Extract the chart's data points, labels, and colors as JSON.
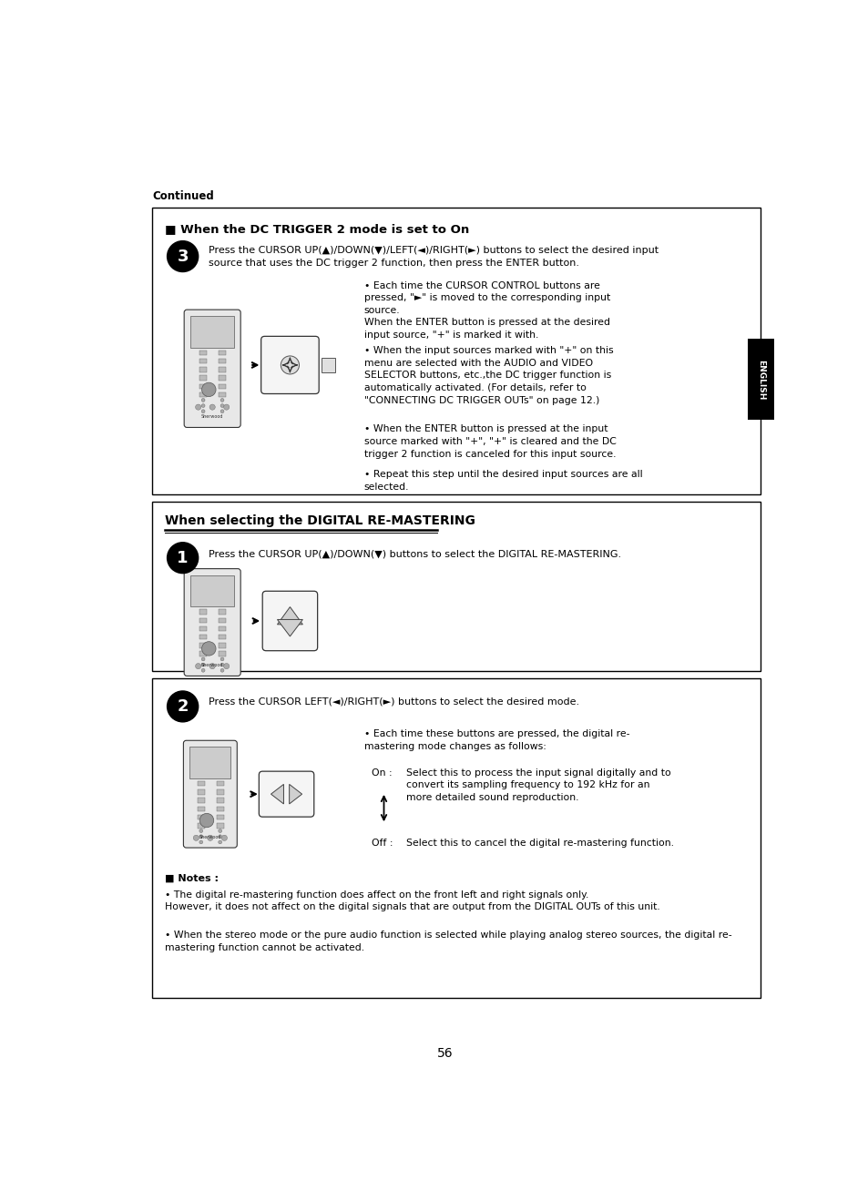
{
  "page_number": "56",
  "continued_text": "Continued",
  "english_tab": "ENGLISH",
  "box1": {
    "title": "■ When the DC TRIGGER 2 mode is set to On",
    "step3_text": "Press the CURSOR UP(▲)/DOWN(▼)/LEFT(◄)/RIGHT(►) buttons to select the desired input\nsource that uses the DC trigger 2 function, then press the ENTER button.",
    "bullet1": "Each time the CURSOR CONTROL buttons are\npressed, \"►\" is moved to the corresponding input\nsource.\nWhen the ENTER button is pressed at the desired\ninput source, \"+\" is marked it with.",
    "bullet2": "When the input sources marked with \"+\" on this\nmenu are selected with the AUDIO and VIDEO\nSELECTOR buttons, etc.,the DC trigger function is\nautomatically activated. (For details, refer to\n\"CONNECTING DC TRIGGER OUTs\" on page 12.)",
    "bullet3": "When the ENTER button is pressed at the input\nsource marked with \"+\", \"+\" is cleared and the DC\ntrigger 2 function is canceled for this input source.",
    "bullet4": "Repeat this step until the desired input sources are all\nselected."
  },
  "box2": {
    "section_title": "When selecting the DIGITAL RE-MASTERING",
    "step1_text": "Press the CURSOR UP(▲)/DOWN(▼) buttons to select the DIGITAL RE-MASTERING."
  },
  "box3": {
    "step2_text": "Press the CURSOR LEFT(◄)/RIGHT(►) buttons to select the desired mode.",
    "bullet_main": "Each time these buttons are pressed, the digital re-\nmastering mode changes as follows:",
    "on_label": "On :",
    "on_text": "Select this to process the input signal digitally and to\nconvert its sampling frequency to 192 kHz for an\nmore detailed sound reproduction.",
    "off_label": "Off :",
    "off_text": "Select this to cancel the digital re-mastering function.",
    "notes_header": "■ Notes :",
    "note1": "The digital re-mastering function does affect on the front left and right signals only.\nHowever, it does not affect on the digital signals that are output from the DIGITAL OUTs of this unit.",
    "note2": "When the stereo mode or the pure audio function is selected while playing analog stereo sources, the digital re-\nmastering function cannot be activated."
  },
  "bg_color": "#ffffff",
  "box_border_color": "#000000",
  "text_color": "#000000"
}
